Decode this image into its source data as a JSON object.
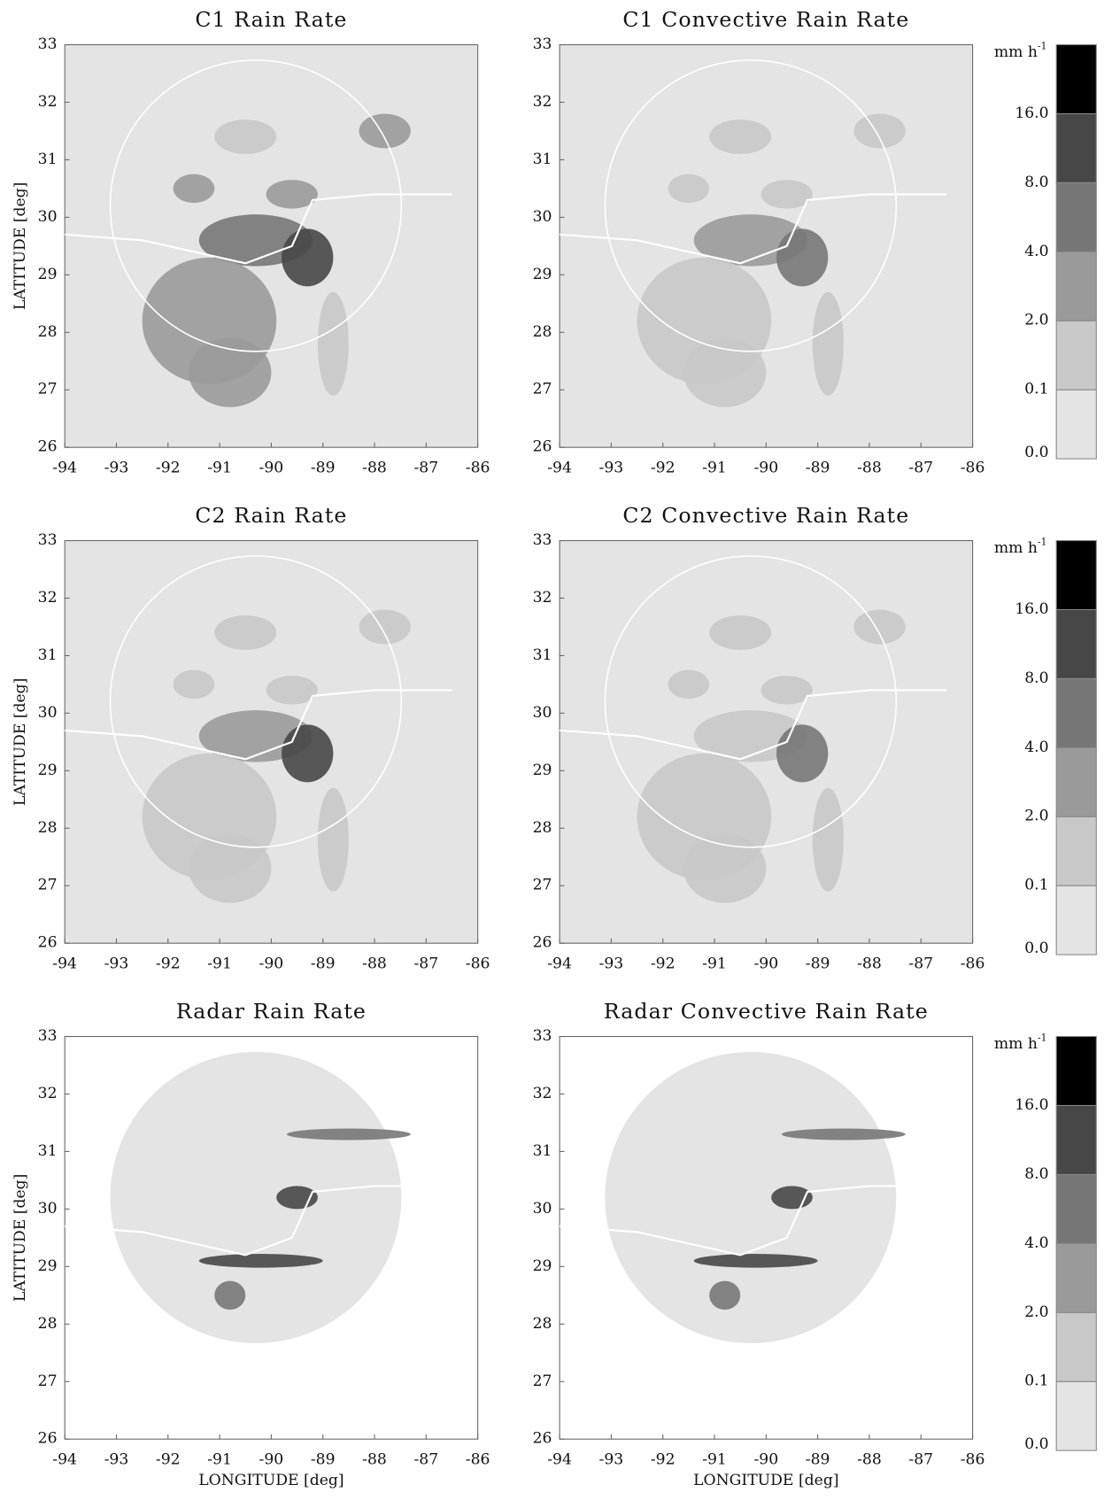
{
  "axes": {
    "xlim": [
      -94,
      -86
    ],
    "ylim": [
      26,
      33
    ],
    "xticks": [
      -94,
      -93,
      -92,
      -91,
      -90,
      -89,
      -88,
      -87,
      -86
    ],
    "yticks": [
      26,
      27,
      28,
      29,
      30,
      31,
      32,
      33
    ],
    "xlabel": "LONGITUDE [deg]",
    "ylabel": "LATITUDE [deg]"
  },
  "panels": [
    {
      "title": "C1 Rain Rate"
    },
    {
      "title": "C1 Convective Rain Rate"
    },
    {
      "title": "C2 Rain Rate"
    },
    {
      "title": "C2 Convective Rain Rate"
    },
    {
      "title": "Radar Rain Rate"
    },
    {
      "title": "Radar Convective Rain Rate"
    }
  ],
  "colorbar": {
    "unit": "mm h",
    "unit_exponent": "-1",
    "labels": [
      {
        "value": 0,
        "label": "0.0"
      },
      0.1,
      {
        "value": 2,
        "label": "2.0"
      },
      {
        "value": 4,
        "label": "4.0"
      },
      {
        "value": 8,
        "label": "8.0"
      },
      {
        "value": 16,
        "label": "16.0"
      }
    ],
    "colors": [
      "#e4e4e4",
      "#c8c8c8",
      "#9a9a9a",
      "#777777",
      "#474747",
      "#000000"
    ]
  }
}
